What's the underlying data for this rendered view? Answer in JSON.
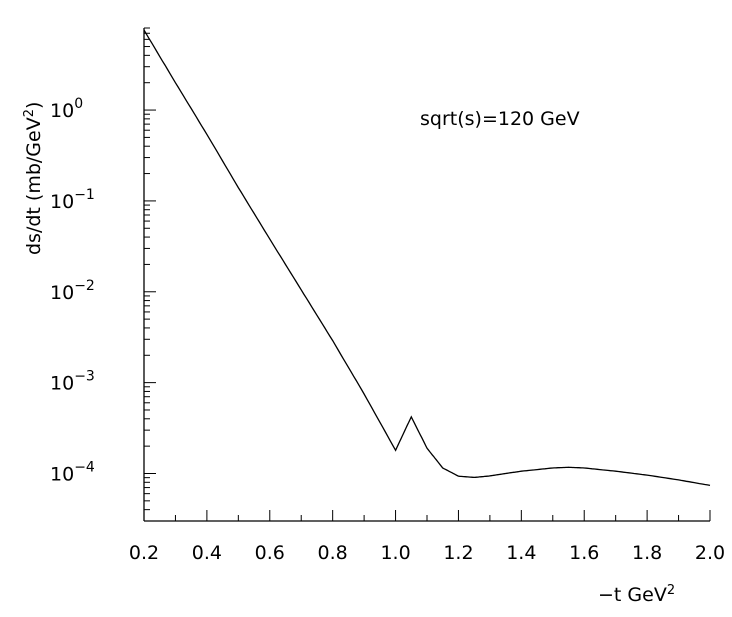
{
  "chart_data": {
    "type": "line",
    "title": "",
    "annotation": "sqrt(s)=120 GeV",
    "xlabel": {
      "main": "−t GeV",
      "sup": "2"
    },
    "ylabel": {
      "main": "ds/dt (mb/GeV",
      "sup": "2",
      "tail": ")"
    },
    "xlim": [
      0.2,
      2.0
    ],
    "ylim": [
      3e-05,
      8.0
    ],
    "yscale": "log",
    "grid": false,
    "x_ticks": [
      "0.2",
      "0.4",
      "0.6",
      "0.8",
      "1.0",
      "1.2",
      "1.4",
      "1.6",
      "1.8",
      "2.0"
    ],
    "y_ticks": [
      {
        "value": 1,
        "base": "10",
        "exp": "0"
      },
      {
        "value": 0.1,
        "base": "10",
        "exp": "−1"
      },
      {
        "value": 0.01,
        "base": "10",
        "exp": "−2"
      },
      {
        "value": 0.001,
        "base": "10",
        "exp": "−3"
      },
      {
        "value": 0.0001,
        "base": "10",
        "exp": "−4"
      }
    ],
    "x": [
      0.2,
      0.3,
      0.4,
      0.5,
      0.6,
      0.7,
      0.8,
      0.9,
      1.0,
      1.05,
      1.1,
      1.15,
      1.2,
      1.25,
      1.3,
      1.35,
      1.4,
      1.5,
      1.55,
      1.6,
      1.7,
      1.8,
      1.9,
      2.0
    ],
    "y": [
      7.6,
      2.0,
      0.54,
      0.14,
      0.038,
      0.0105,
      0.0029,
      0.00075,
      0.00018,
      0.00042,
      0.00019,
      0.000115,
      9.35e-05,
      9.05e-05,
      9.4e-05,
      0.0001,
      0.000106,
      0.000115,
      0.000117,
      0.000115,
      0.000106,
      9.6e-05,
      8.5e-05,
      7.4e-05
    ]
  }
}
